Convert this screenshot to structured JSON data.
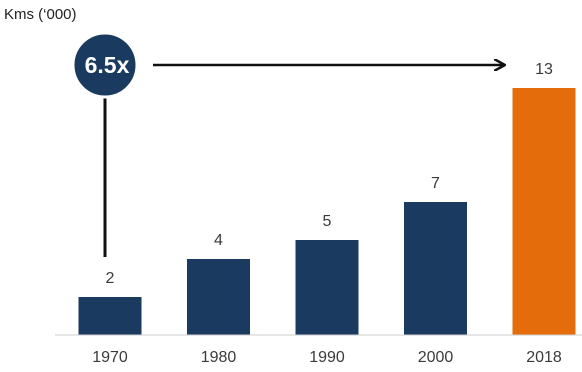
{
  "chart_data": {
    "type": "bar",
    "unit_label": "Kms (‘000)",
    "categories": [
      "1970",
      "1980",
      "1990",
      "2000",
      "2018"
    ],
    "values": [
      2,
      4,
      5,
      7,
      13
    ],
    "data_labels": [
      "2",
      "4",
      "5",
      "7",
      "13"
    ],
    "ylim": [
      0,
      15
    ],
    "grid": false,
    "colors": {
      "default_bar": "#1b3a5f",
      "highlight_bar": "#e46c0a",
      "highlight_index": 4,
      "callout": "#1b3a5f"
    },
    "annotation": {
      "text": "6.5x",
      "from_category": "1970",
      "to_category": "2018"
    }
  }
}
